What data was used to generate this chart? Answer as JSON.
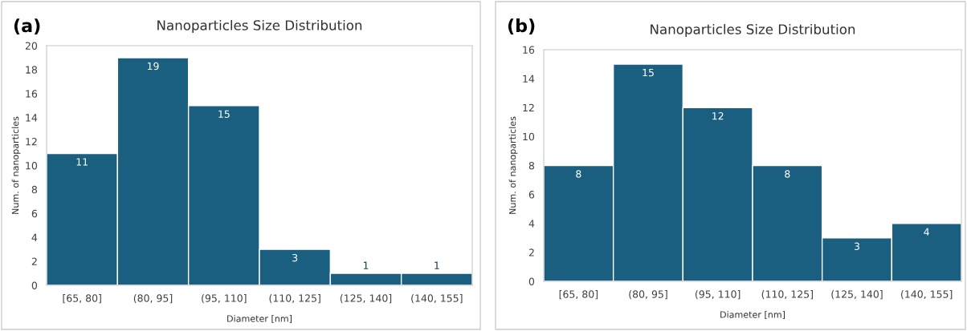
{
  "chart_data": [
    {
      "type": "bar",
      "title": "Nanoparticles Size Distribution",
      "xlabel": "Diameter [nm]",
      "ylabel": "Num. of nanoparticles",
      "annotations": [
        "(a)"
      ],
      "categories": [
        "[65, 80]",
        "(80, 95]",
        "(95, 110]",
        "(110, 125]",
        "(125, 140]",
        "(140, 155]"
      ],
      "values": [
        11,
        19,
        15,
        3,
        1,
        1
      ],
      "color": "#1a5f80",
      "ylim": [
        0,
        20
      ],
      "yticks": [
        0,
        2,
        4,
        6,
        8,
        10,
        12,
        14,
        16,
        18,
        20
      ],
      "data_labels": true,
      "grid": false,
      "legend": false
    },
    {
      "type": "bar",
      "title": "Nanoparticles Size Distribution",
      "xlabel": "Diameter [nm]",
      "ylabel": "Num. of nanoparticles",
      "annotations": [
        "(b)"
      ],
      "categories": [
        "[65, 80]",
        "(80, 95]",
        "(95, 110]",
        "(110, 125]",
        "(125, 140]",
        "(140, 155]"
      ],
      "values": [
        8,
        15,
        12,
        8,
        3,
        4
      ],
      "color": "#1a5f80",
      "ylim": [
        0,
        16
      ],
      "yticks": [
        0,
        2,
        4,
        6,
        8,
        10,
        12,
        14,
        16
      ],
      "data_labels": true,
      "grid": false,
      "legend": false
    }
  ]
}
